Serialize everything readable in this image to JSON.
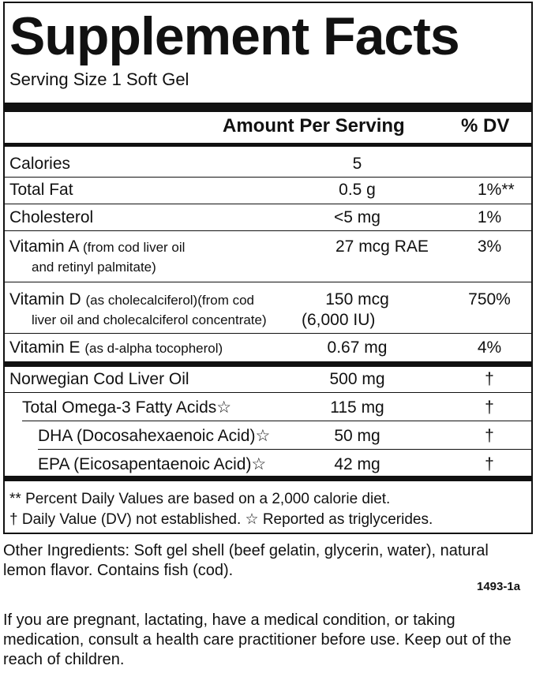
{
  "title": "Supplement Facts",
  "serving_size": "Serving Size 1 Soft Gel",
  "header": {
    "amount": "Amount Per Serving",
    "dv": "% DV"
  },
  "rows": [
    {
      "name": "Calories",
      "note": "",
      "note2": "",
      "amount": "5",
      "amount2": "",
      "dv": ""
    },
    {
      "name": "Total Fat",
      "note": "",
      "note2": "",
      "amount": "0.5 g",
      "amount2": "",
      "dv": "1%**"
    },
    {
      "name": "Cholesterol",
      "note": "",
      "note2": "",
      "amount": "<5 mg",
      "amount2": "",
      "dv": "1%"
    },
    {
      "name": "Vitamin A",
      "note": "(from cod liver oil",
      "note2": "and retinyl palmitate)",
      "amount": "27 mcg RAE",
      "amount2": "",
      "dv": "3%"
    },
    {
      "name": "Vitamin D",
      "note": "(as cholecalciferol)(from cod",
      "note2": "liver oil and cholecalciferol concentrate)",
      "amount": "150 mcg",
      "amount2": "(6,000 IU)",
      "dv": "750%"
    },
    {
      "name": "Vitamin E",
      "note": "(as d-alpha tocopherol)",
      "note2": "",
      "amount": "0.67 mg",
      "amount2": "",
      "dv": "4%"
    },
    {
      "name": "Norwegian Cod Liver Oil",
      "note": "",
      "note2": "",
      "amount": "500 mg",
      "amount2": "",
      "dv": "†"
    },
    {
      "name": "Total Omega-3 Fatty Acids☆",
      "note": "",
      "note2": "",
      "amount": "115 mg",
      "amount2": "",
      "dv": "†"
    },
    {
      "name": "DHA (Docosahexaenoic Acid)☆",
      "note": "",
      "note2": "",
      "amount": "50 mg",
      "amount2": "",
      "dv": "†"
    },
    {
      "name": "EPA (Eicosapentaenoic Acid)☆",
      "note": "",
      "note2": "",
      "amount": "42 mg",
      "amount2": "",
      "dv": "†"
    }
  ],
  "footnotes": [
    "** Percent Daily Values are based on a 2,000 calorie diet.",
    "† Daily Value (DV) not established.  ☆ Reported as triglycerides."
  ],
  "other_ingredients": "Other Ingredients:  Soft gel shell (beef gelatin, glycerin, water), natural lemon flavor.   Contains fish (cod).",
  "code": "1493-1a",
  "warning": "If you are pregnant, lactating, have a medical condition, or taking medication, consult a health care practitioner before use. Keep out of the reach of children."
}
